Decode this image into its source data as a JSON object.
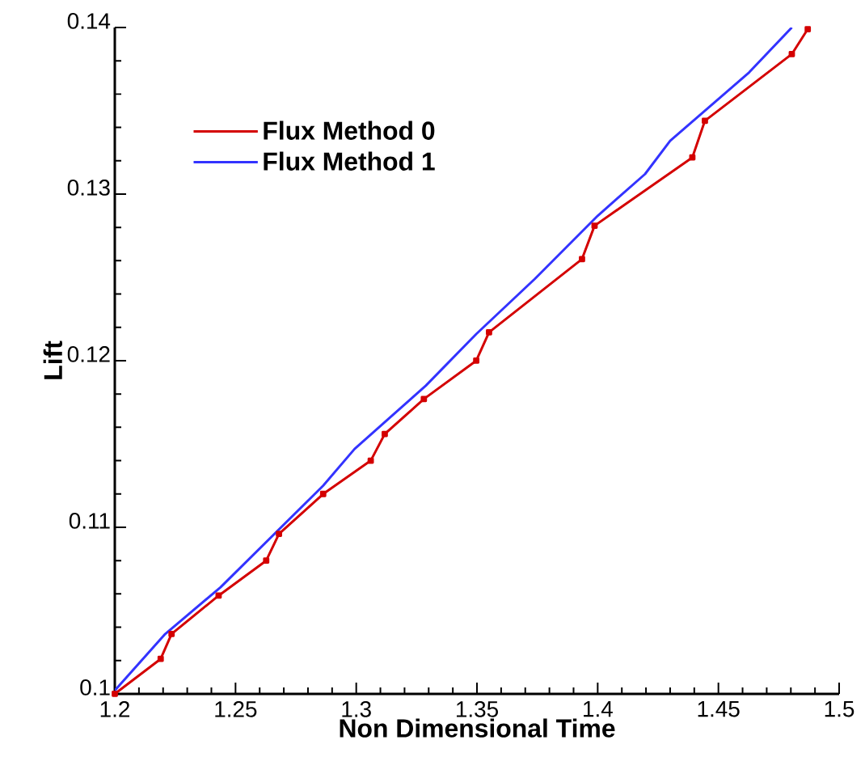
{
  "chart_data": {
    "type": "line",
    "xlabel": "Non Dimensional Time",
    "ylabel": "Lift",
    "xlim": [
      1.2,
      1.5
    ],
    "ylim": [
      0.1,
      0.14
    ],
    "xticks": [
      1.2,
      1.25,
      1.3,
      1.35,
      1.4,
      1.45,
      1.5
    ],
    "yticks": [
      0.1,
      0.11,
      0.12,
      0.13,
      0.14
    ],
    "legend": "top left",
    "grid": false,
    "line_style": "solid",
    "series": [
      {
        "name": "Flux Method 0",
        "color": "#d40000",
        "marker": "square",
        "x": [
          1.2,
          1.219,
          1.2235,
          1.243,
          1.2627,
          1.268,
          1.2863,
          1.306,
          1.3118,
          1.328,
          1.3497,
          1.355,
          1.3935,
          1.3987,
          1.4392,
          1.4444,
          1.4804,
          1.487
        ],
        "values": [
          0.1,
          0.1021,
          0.1036,
          0.1059,
          0.108,
          0.1096,
          0.112,
          0.114,
          0.1156,
          0.1177,
          0.12,
          0.1217,
          0.1261,
          0.1281,
          0.1322,
          0.1344,
          0.1384,
          0.1399
        ]
      },
      {
        "name": "Flux Method 1",
        "color": "#3333ff",
        "marker": "none",
        "x": [
          1.2,
          1.2209,
          1.2438,
          1.2863,
          1.2993,
          1.3288,
          1.3497,
          1.3739,
          1.4,
          1.4196,
          1.43,
          1.4627,
          1.4804
        ],
        "values": [
          0.1002,
          0.1036,
          0.1064,
          0.1125,
          0.1147,
          0.1185,
          0.1216,
          0.1249,
          0.1287,
          0.1312,
          0.1332,
          0.1373,
          0.14
        ]
      }
    ]
  }
}
